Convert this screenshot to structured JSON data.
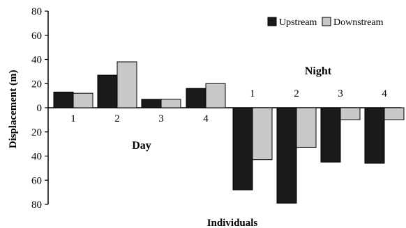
{
  "chart_data": {
    "type": "bar",
    "xlabel": "Individuals",
    "ylabel": "Displacement (m)",
    "ylim": [
      -80,
      80
    ],
    "yticks": [
      80,
      60,
      40,
      20,
      0,
      20,
      40,
      60,
      80
    ],
    "grid": false,
    "legend_placement": "top-right",
    "groups": [
      {
        "label": "Day",
        "categories": [
          "1",
          "2",
          "3",
          "4"
        ]
      },
      {
        "label": "Night",
        "categories": [
          "1",
          "2",
          "3",
          "4"
        ]
      }
    ],
    "series": [
      {
        "name": "Upstream",
        "color": "#1a1a1a",
        "values": [
          13,
          27,
          7,
          16,
          -68,
          -79,
          -45,
          -46
        ]
      },
      {
        "name": "Downstream",
        "color": "#c8c8c8",
        "values": [
          12,
          38,
          7,
          20,
          -43,
          -33,
          -10,
          -10
        ]
      }
    ]
  }
}
